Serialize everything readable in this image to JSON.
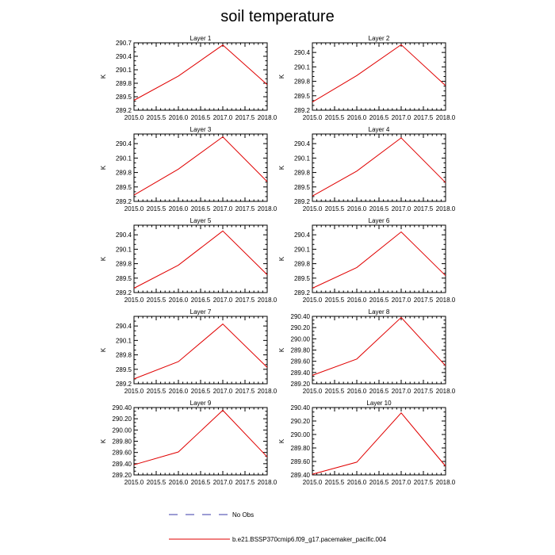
{
  "figure_title": "soil temperature",
  "legend": {
    "entries": [
      {
        "label": "No Obs",
        "color": "#3a3aa8",
        "style": "dashed"
      },
      {
        "label": "b.e21.BSSP370cmip6.f09_g17.pacemaker_pacific.004",
        "color": "#e00000",
        "style": "solid"
      }
    ]
  },
  "chart_data": [
    {
      "type": "line",
      "title": "Layer 1",
      "ylabel": "K",
      "xlim": [
        2015.0,
        2018.0
      ],
      "xticks": [
        "2015.0",
        "2015.5",
        "2016.0",
        "2016.5",
        "2017.0",
        "2017.5",
        "2018.0"
      ],
      "ylim": [
        289.2,
        290.7
      ],
      "yticks": [
        "289.2",
        "289.5",
        "289.8",
        "290.1",
        "290.4",
        "290.7"
      ],
      "series": [
        {
          "name": "b.e21.BSSP370cmip6.f09_g17.pacemaker_pacific.004",
          "x": [
            2015,
            2016,
            2017,
            2018
          ],
          "y": [
            289.42,
            289.96,
            290.65,
            289.77
          ]
        }
      ]
    },
    {
      "type": "line",
      "title": "Layer 2",
      "ylabel": "K",
      "xlim": [
        2015.0,
        2018.0
      ],
      "xticks": [
        "2015.0",
        "2015.5",
        "2016.0",
        "2016.5",
        "2017.0",
        "2017.5",
        "2018.0"
      ],
      "ylim": [
        289.2,
        290.6
      ],
      "yticks": [
        "289.2",
        "289.5",
        "289.8",
        "290.1",
        "290.4"
      ],
      "series": [
        {
          "name": "b.e21.BSSP370cmip6.f09_g17.pacemaker_pacific.004",
          "x": [
            2015,
            2016,
            2017,
            2018
          ],
          "y": [
            289.37,
            289.92,
            290.56,
            289.71
          ]
        }
      ]
    },
    {
      "type": "line",
      "title": "Layer 3",
      "ylabel": "K",
      "xlim": [
        2015.0,
        2018.0
      ],
      "xticks": [
        "2015.0",
        "2015.5",
        "2016.0",
        "2016.5",
        "2017.0",
        "2017.5",
        "2018.0"
      ],
      "ylim": [
        289.2,
        290.6
      ],
      "yticks": [
        "289.2",
        "289.5",
        "289.8",
        "290.1",
        "290.4"
      ],
      "series": [
        {
          "name": "b.e21.BSSP370cmip6.f09_g17.pacemaker_pacific.004",
          "x": [
            2015,
            2016,
            2017,
            2018
          ],
          "y": [
            289.33,
            289.87,
            290.54,
            289.61
          ]
        }
      ]
    },
    {
      "type": "line",
      "title": "Layer 4",
      "ylabel": "K",
      "xlim": [
        2015.0,
        2018.0
      ],
      "xticks": [
        "2015.0",
        "2015.5",
        "2016.0",
        "2016.5",
        "2017.0",
        "2017.5",
        "2018.0"
      ],
      "ylim": [
        289.2,
        290.6
      ],
      "yticks": [
        "289.2",
        "289.5",
        "289.8",
        "290.1",
        "290.4"
      ],
      "series": [
        {
          "name": "b.e21.BSSP370cmip6.f09_g17.pacemaker_pacific.004",
          "x": [
            2015,
            2016,
            2017,
            2018
          ],
          "y": [
            289.31,
            289.83,
            290.52,
            289.59
          ]
        }
      ]
    },
    {
      "type": "line",
      "title": "Layer 5",
      "ylabel": "K",
      "xlim": [
        2015.0,
        2018.0
      ],
      "xticks": [
        "2015.0",
        "2015.5",
        "2016.0",
        "2016.5",
        "2017.0",
        "2017.5",
        "2018.0"
      ],
      "ylim": [
        289.2,
        290.6
      ],
      "yticks": [
        "289.2",
        "289.5",
        "289.8",
        "290.1",
        "290.4"
      ],
      "series": [
        {
          "name": "b.e21.BSSP370cmip6.f09_g17.pacemaker_pacific.004",
          "x": [
            2015,
            2016,
            2017,
            2018
          ],
          "y": [
            289.29,
            289.77,
            290.48,
            289.57
          ]
        }
      ]
    },
    {
      "type": "line",
      "title": "Layer 6",
      "ylabel": "K",
      "xlim": [
        2015.0,
        2018.0
      ],
      "xticks": [
        "2015.0",
        "2015.5",
        "2016.0",
        "2016.5",
        "2017.0",
        "2017.5",
        "2018.0"
      ],
      "ylim": [
        289.2,
        290.6
      ],
      "yticks": [
        "289.2",
        "289.5",
        "289.8",
        "290.1",
        "290.4"
      ],
      "series": [
        {
          "name": "b.e21.BSSP370cmip6.f09_g17.pacemaker_pacific.004",
          "x": [
            2015,
            2016,
            2017,
            2018
          ],
          "y": [
            289.29,
            289.72,
            290.46,
            289.55
          ]
        }
      ]
    },
    {
      "type": "line",
      "title": "Layer 7",
      "ylabel": "K",
      "xlim": [
        2015.0,
        2018.0
      ],
      "xticks": [
        "2015.0",
        "2015.5",
        "2016.0",
        "2016.5",
        "2017.0",
        "2017.5",
        "2018.0"
      ],
      "ylim": [
        289.2,
        290.6
      ],
      "yticks": [
        "289.2",
        "289.5",
        "289.8",
        "290.1",
        "290.4"
      ],
      "series": [
        {
          "name": "b.e21.BSSP370cmip6.f09_g17.pacemaker_pacific.004",
          "x": [
            2015,
            2016,
            2017,
            2018
          ],
          "y": [
            289.3,
            289.66,
            290.44,
            289.54
          ]
        }
      ]
    },
    {
      "type": "line",
      "title": "Layer 8",
      "ylabel": "K",
      "xlim": [
        2015.0,
        2018.0
      ],
      "xticks": [
        "2015.0",
        "2015.5",
        "2016.0",
        "2016.5",
        "2017.0",
        "2017.5",
        "2018.0"
      ],
      "ylim": [
        289.2,
        290.4
      ],
      "yticks": [
        "289.20",
        "289.40",
        "289.60",
        "289.80",
        "290.00",
        "290.20",
        "290.40"
      ],
      "series": [
        {
          "name": "b.e21.BSSP370cmip6.f09_g17.pacemaker_pacific.004",
          "x": [
            2015,
            2016,
            2017,
            2018
          ],
          "y": [
            289.35,
            289.64,
            290.38,
            289.52
          ]
        }
      ]
    },
    {
      "type": "line",
      "title": "Layer 9",
      "ylabel": "K",
      "xlim": [
        2015.0,
        2018.0
      ],
      "xticks": [
        "2015.0",
        "2015.5",
        "2016.0",
        "2016.5",
        "2017.0",
        "2017.5",
        "2018.0"
      ],
      "ylim": [
        289.2,
        290.4
      ],
      "yticks": [
        "289.20",
        "289.40",
        "289.60",
        "289.80",
        "290.00",
        "290.20",
        "290.40"
      ],
      "series": [
        {
          "name": "b.e21.BSSP370cmip6.f09_g17.pacemaker_pacific.004",
          "x": [
            2015,
            2016,
            2017,
            2018
          ],
          "y": [
            289.38,
            289.61,
            290.35,
            289.52
          ]
        }
      ]
    },
    {
      "type": "line",
      "title": "Layer 10",
      "ylabel": "K",
      "xlim": [
        2015.0,
        2018.0
      ],
      "xticks": [
        "2015.0",
        "2015.5",
        "2016.0",
        "2016.5",
        "2017.0",
        "2017.5",
        "2018.0"
      ],
      "ylim": [
        289.4,
        290.4
      ],
      "yticks": [
        "289.40",
        "289.60",
        "289.80",
        "290.00",
        "290.20",
        "290.40"
      ],
      "series": [
        {
          "name": "b.e21.BSSP370cmip6.f09_g17.pacemaker_pacific.004",
          "x": [
            2015,
            2016,
            2017,
            2018
          ],
          "y": [
            289.41,
            289.59,
            290.32,
            289.53
          ]
        }
      ]
    }
  ]
}
